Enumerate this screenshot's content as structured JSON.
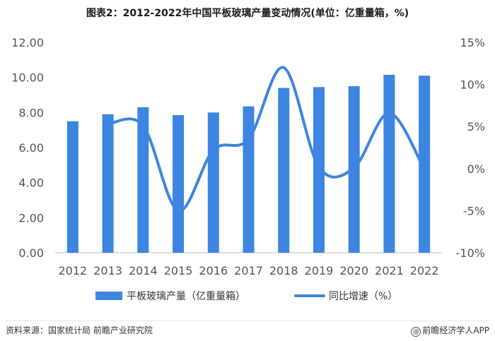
{
  "title": "图表2：2012-2022年中国平板玻璃产量变动情况(单位：亿重量箱，%)",
  "footer": {
    "source": "资料来源：国家统计局 前瞻产业研究院",
    "brand": "前瞻经济学人APP"
  },
  "colors": {
    "bar": "#3d85e0",
    "line": "#3d85e0",
    "axis_text": "#555555"
  },
  "chart_data": {
    "type": "bar",
    "categories": [
      "2012",
      "2013",
      "2014",
      "2015",
      "2016",
      "2017",
      "2018",
      "2019",
      "2020",
      "2021",
      "2022"
    ],
    "series": [
      {
        "name": "平板玻璃产量（亿重量箱）",
        "type": "bar",
        "axis": "left",
        "values": [
          7.5,
          7.9,
          8.3,
          7.85,
          8.0,
          8.35,
          9.4,
          9.45,
          9.5,
          10.15,
          10.1
        ]
      },
      {
        "name": "同比增速（%）",
        "type": "line",
        "axis": "right",
        "smooth": true,
        "values": [
          null,
          5.3,
          5.1,
          -5.0,
          2.2,
          3.5,
          12.0,
          0.2,
          0.1,
          6.6,
          -0.1
        ]
      }
    ],
    "y_left": {
      "min": 0,
      "max": 12,
      "ticks": [
        "0.00",
        "2.00",
        "4.00",
        "6.00",
        "8.00",
        "10.00",
        "12.00"
      ]
    },
    "y_right": {
      "min": -10,
      "max": 15,
      "ticks": [
        "-10%",
        "-5%",
        "0%",
        "5%",
        "10%",
        "15%"
      ]
    },
    "legend": "bottom",
    "grid": false
  }
}
